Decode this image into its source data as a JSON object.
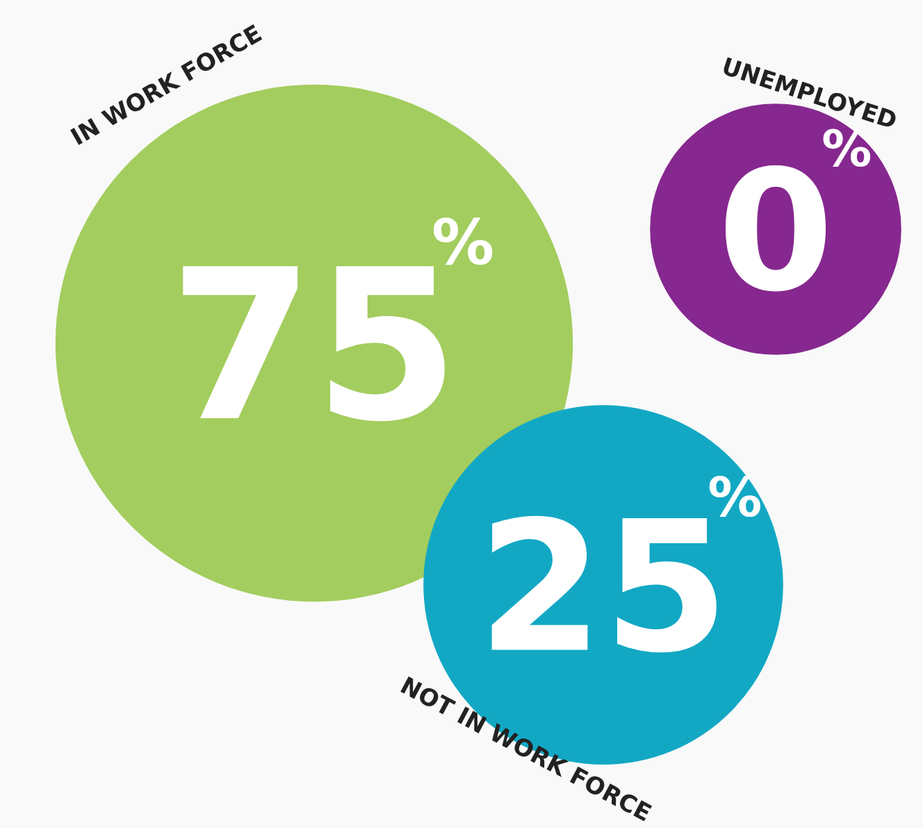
{
  "chart_data": {
    "type": "other",
    "categories": [
      "IN WORK FORCE",
      "NOT IN WORK FORCE",
      "UNEMPLOYED"
    ],
    "values": [
      75,
      25,
      0
    ],
    "data_labels": true,
    "annotations": [
      "%",
      "%",
      "%"
    ],
    "colors": [
      "#a3cd5e",
      "#12a8c4",
      "#86288f"
    ]
  }
}
